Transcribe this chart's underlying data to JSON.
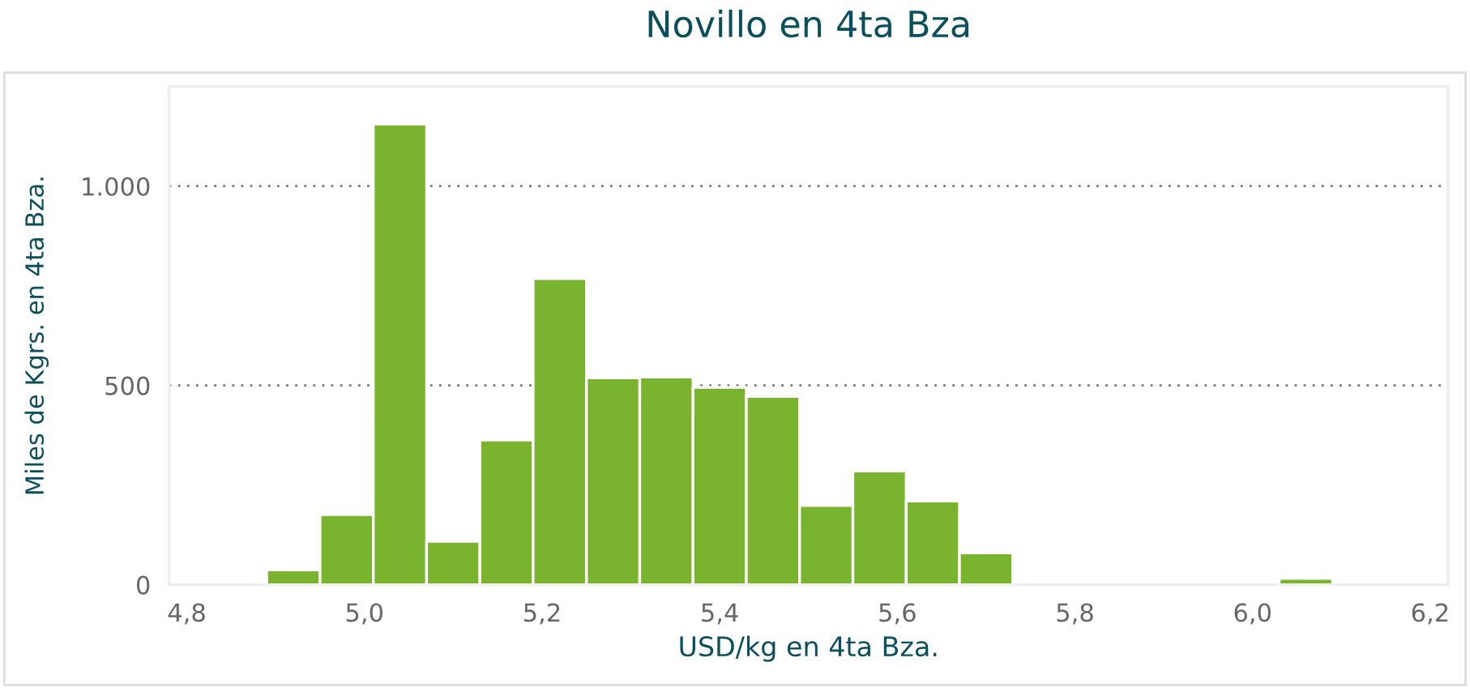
{
  "chart_data": {
    "type": "histogram",
    "title": "Novillo en 4ta Bza",
    "xlabel": "USD/kg en 4ta Bza.",
    "ylabel": "Miles de Kgrs. en 4ta Bza.",
    "bins": [
      4.89,
      4.95,
      5.01,
      5.07,
      5.13,
      5.19,
      5.25,
      5.31,
      5.37,
      5.43,
      5.49,
      5.55,
      5.61,
      5.67,
      5.73,
      5.79,
      5.85,
      5.91,
      5.97,
      6.03,
      6.09
    ],
    "values": [
      37,
      176,
      1156,
      109,
      363,
      768,
      519,
      521,
      495,
      472,
      199,
      285,
      210,
      80,
      0,
      0,
      0,
      0,
      0,
      16
    ],
    "color": "#7ab32e",
    "xlim": [
      4.78,
      6.22
    ],
    "xticks": [
      {
        "value": 4.8,
        "label": "4,8"
      },
      {
        "value": 5.0,
        "label": "5,0"
      },
      {
        "value": 5.2,
        "label": "5,2"
      },
      {
        "value": 5.4,
        "label": "5,4"
      },
      {
        "value": 5.6,
        "label": "5,6"
      },
      {
        "value": 5.8,
        "label": "5,8"
      },
      {
        "value": 6.0,
        "label": "6,0"
      },
      {
        "value": 6.2,
        "label": "6,2"
      }
    ],
    "ylim": [
      0,
      1250
    ],
    "yticks": [
      0,
      500,
      {
        "value": 1000,
        "label": "1.000"
      }
    ],
    "grid": "y"
  }
}
